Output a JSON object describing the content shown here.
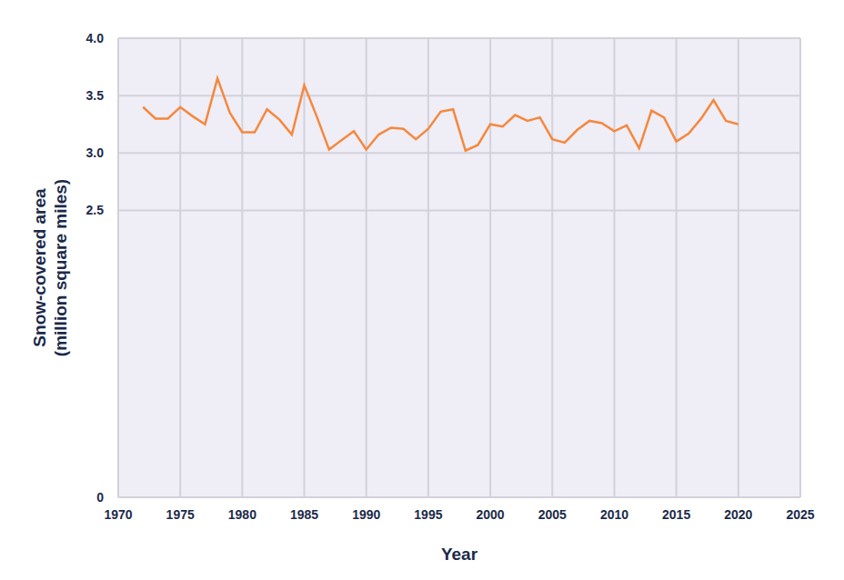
{
  "chart_data": {
    "type": "line",
    "xlabel": "Year",
    "ylabel": "Snow-covered area (million square miles)",
    "x": [
      1972,
      1973,
      1974,
      1975,
      1976,
      1977,
      1978,
      1979,
      1980,
      1981,
      1982,
      1983,
      1984,
      1985,
      1986,
      1987,
      1988,
      1989,
      1990,
      1991,
      1992,
      1993,
      1994,
      1995,
      1996,
      1997,
      1998,
      1999,
      2000,
      2001,
      2002,
      2003,
      2004,
      2005,
      2006,
      2007,
      2008,
      2009,
      2010,
      2011,
      2012,
      2013,
      2014,
      2015,
      2016,
      2017,
      2018,
      2019,
      2020
    ],
    "values": [
      3.4,
      3.3,
      3.3,
      3.4,
      3.32,
      3.25,
      3.65,
      3.35,
      3.18,
      3.18,
      3.38,
      3.29,
      3.16,
      3.59,
      3.32,
      3.03,
      3.11,
      3.19,
      3.03,
      3.16,
      3.22,
      3.21,
      3.12,
      3.21,
      3.36,
      3.38,
      3.02,
      3.07,
      3.25,
      3.23,
      3.33,
      3.28,
      3.31,
      3.12,
      3.09,
      3.2,
      3.28,
      3.26,
      3.19,
      3.24,
      3.04,
      3.37,
      3.31,
      3.1,
      3.17,
      3.3,
      3.46,
      3.28,
      3.25
    ],
    "color": "#f5883d",
    "marker": "none",
    "xlim": [
      1970,
      2025
    ],
    "xticks": [
      1970,
      1975,
      1980,
      1985,
      1990,
      1995,
      2000,
      2005,
      2010,
      2015,
      2020,
      2025
    ],
    "ylim": [
      0,
      4
    ],
    "yticks": [
      0,
      {
        "value": 2.5,
        "label": "2.5"
      },
      {
        "value": 3,
        "label": "3.0"
      },
      {
        "value": 3.5,
        "label": "3.5"
      },
      {
        "value": 4,
        "label": "4.0"
      }
    ],
    "grid": true
  }
}
